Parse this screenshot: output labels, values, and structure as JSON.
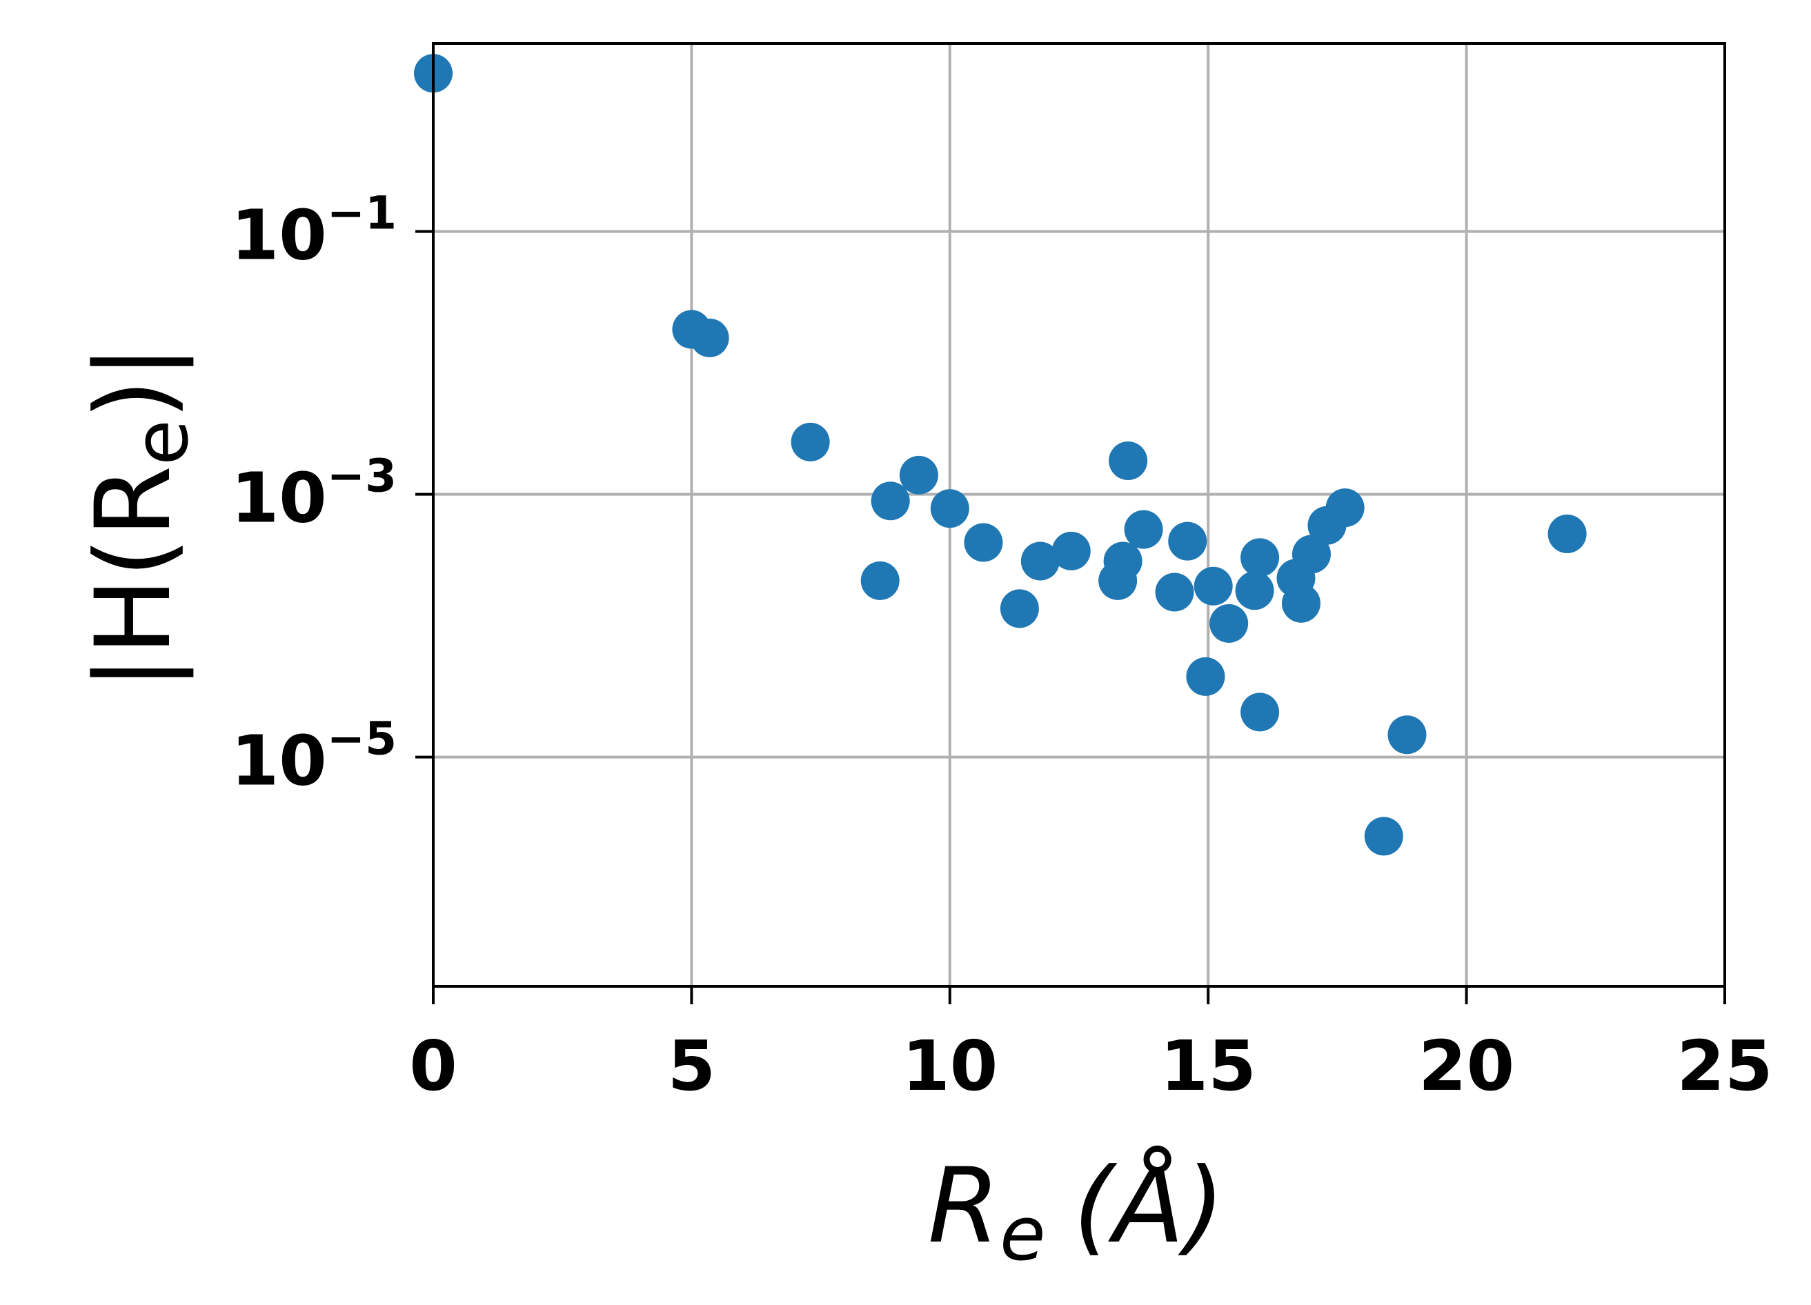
{
  "chart_data": {
    "type": "scatter",
    "xlabel": {
      "symbol": "R",
      "subscript": "e",
      "unit": "(Å)"
    },
    "ylabel": {
      "text": "|H(R",
      "subscript": "e",
      "close": ")|"
    },
    "xlim": [
      0,
      25
    ],
    "ylim": [
      1.8e-07,
      2.7
    ],
    "yscale": "log",
    "grid": true,
    "color": "#1f77b4",
    "xticks": [
      {
        "value": 0,
        "label": "0"
      },
      {
        "value": 5,
        "label": "5"
      },
      {
        "value": 10,
        "label": "10"
      },
      {
        "value": 15,
        "label": "15"
      },
      {
        "value": 20,
        "label": "20"
      },
      {
        "value": 25,
        "label": "25"
      }
    ],
    "yticks": [
      {
        "value": 0.1,
        "base": "10",
        "exponent": "−1"
      },
      {
        "value": 0.001,
        "base": "10",
        "exponent": "−3"
      },
      {
        "value": 1e-05,
        "base": "10",
        "exponent": "−5"
      }
    ],
    "points": [
      [
        0.0,
        1.6
      ],
      [
        5.0,
        0.018
      ],
      [
        5.35,
        0.0155
      ],
      [
        7.3,
        0.0025
      ],
      [
        8.65,
        0.00022
      ],
      [
        8.85,
        0.00089
      ],
      [
        9.4,
        0.0014
      ],
      [
        10.0,
        0.00078
      ],
      [
        10.65,
        0.00043
      ],
      [
        11.35,
        0.000135
      ],
      [
        11.75,
        0.00031
      ],
      [
        12.35,
        0.00037
      ],
      [
        13.25,
        0.00022
      ],
      [
        13.35,
        0.00031
      ],
      [
        13.45,
        0.0018
      ],
      [
        13.75,
        0.00054
      ],
      [
        14.35,
        0.00018
      ],
      [
        14.6,
        0.00044
      ],
      [
        14.95,
        4.1e-05
      ],
      [
        15.1,
        0.0002
      ],
      [
        15.4,
        0.000104
      ],
      [
        15.9,
        0.000185
      ],
      [
        16.0,
        0.00033
      ],
      [
        16.0,
        2.2e-05
      ],
      [
        16.7,
        0.00023
      ],
      [
        16.8,
        0.000148
      ],
      [
        17.0,
        0.00035
      ],
      [
        17.3,
        0.00058
      ],
      [
        17.65,
        0.00079
      ],
      [
        18.4,
        2.5e-06
      ],
      [
        18.85,
        1.48e-05
      ],
      [
        21.95,
        0.0005
      ]
    ]
  }
}
